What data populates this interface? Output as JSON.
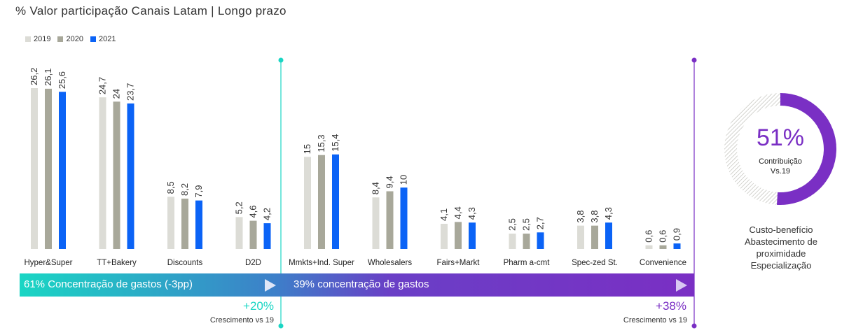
{
  "title": "% Valor participação Canais Latam | Longo prazo",
  "colors": {
    "s2019": "#dcdcd6",
    "s2020": "#a8a89a",
    "s2021": "#0b63f6",
    "teal": "#1ad6c4",
    "purple": "#7a2fc4"
  },
  "chart_data": {
    "type": "bar",
    "categories": [
      "Hyper&Super",
      "TT+Bakery",
      "Discounts",
      "D2D",
      "Mmkts+Ind. Super",
      "Wholesalers",
      "Fairs+Markt",
      "Pharm a-cmt",
      "Spec-zed St.",
      "Convenience"
    ],
    "series": [
      {
        "name": "2019",
        "values": [
          26.2,
          24.7,
          8.5,
          5.2,
          15,
          8.4,
          4.1,
          2.5,
          3.8,
          0.6
        ],
        "labels": [
          "26,2",
          "24,7",
          "8,5",
          "5,2",
          "15",
          "8,4",
          "4,1",
          "2,5",
          "3,8",
          "0,6"
        ]
      },
      {
        "name": "2020",
        "values": [
          26.1,
          24,
          8.2,
          4.6,
          15.3,
          9.4,
          4.4,
          2.5,
          3.8,
          0.6
        ],
        "labels": [
          "26,1",
          "24",
          "8,2",
          "4,6",
          "15,3",
          "9,4",
          "4,4",
          "2,5",
          "3,8",
          "0,6"
        ]
      },
      {
        "name": "2021",
        "values": [
          25.6,
          23.7,
          7.9,
          4.2,
          15.4,
          10,
          4.3,
          2.7,
          4.3,
          0.9
        ],
        "labels": [
          "25,6",
          "23,7",
          "7,9",
          "4,2",
          "15,4",
          "10",
          "4,3",
          "2,7",
          "4,3",
          "0,9"
        ]
      }
    ],
    "ylim": [
      0,
      26.2
    ],
    "legend_position": "top-left"
  },
  "band": {
    "left_text": "61% Concentração de gastos (-3pp)",
    "right_text": "39% concentração de gastos"
  },
  "growth": {
    "left_value": "+20%",
    "left_label": "Crescimento vs 19",
    "right_value": "+38%",
    "right_label": "Crescimento vs 19"
  },
  "donut": {
    "value": "51%",
    "fraction": 0.51,
    "line1": "Contribuição",
    "line2": "Vs.19"
  },
  "side_text": [
    "Custo-benefício",
    "Abastecimento de",
    "proximidade",
    "Especialização"
  ]
}
